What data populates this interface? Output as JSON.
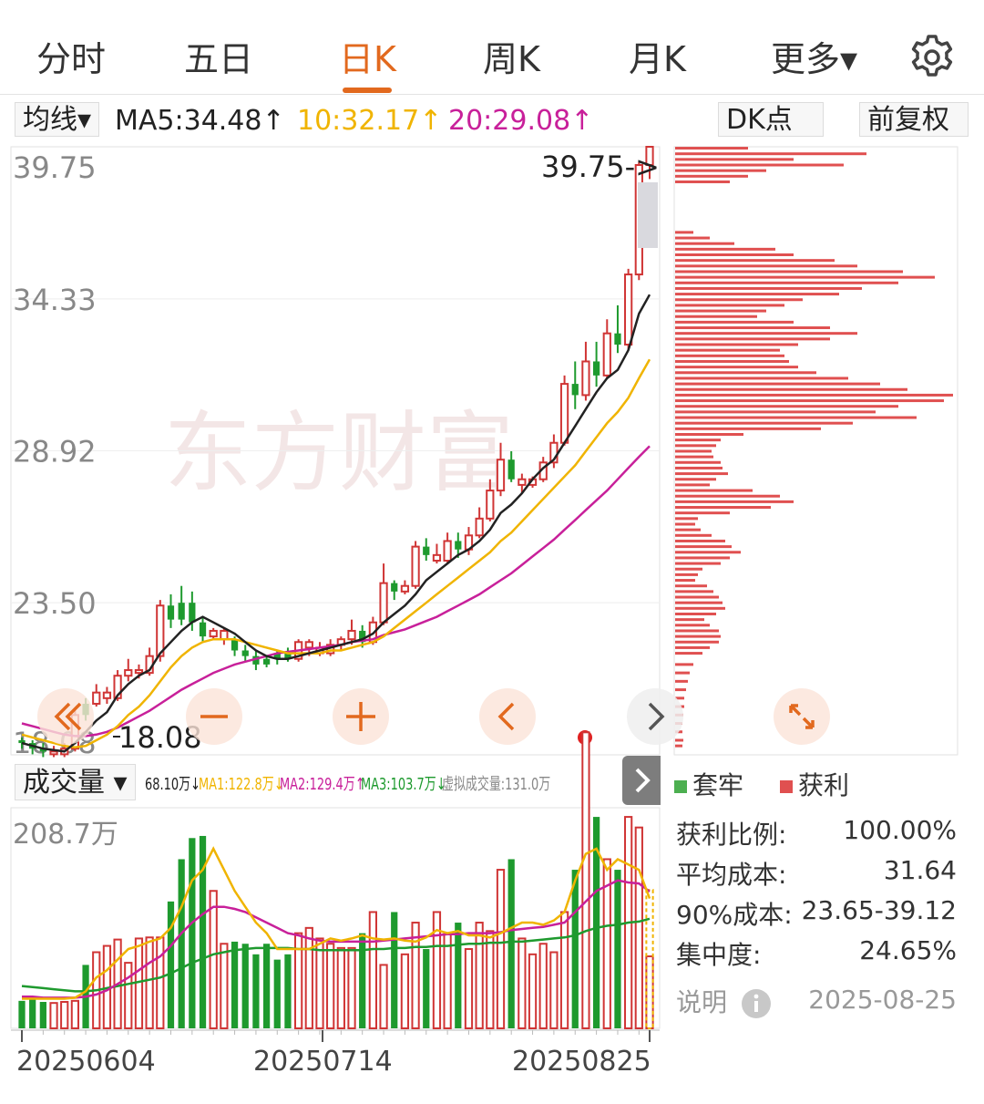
{
  "tabs": [
    {
      "label": "分时"
    },
    {
      "label": "五日"
    },
    {
      "label": "日K"
    },
    {
      "label": "周K"
    },
    {
      "label": "月K"
    },
    {
      "label": "更多▾"
    }
  ],
  "active_tab": "日K",
  "ma_bar": {
    "selector": "均线▾",
    "ma5": "MA5:34.48↑",
    "ma10": "10:32.17↑",
    "ma20": "20:29.08↑",
    "dk": "DK点",
    "fuquan": "前复权"
  },
  "volume_bar": {
    "selector": "成交量 ▾",
    "vol": "68.10万↓",
    "ma1": "MA1:122.8万↓",
    "ma2": "MA2:129.4万↑",
    "ma3": "MA3:103.7万↓",
    "virtual": "虚拟成交量:131.0万"
  },
  "chip_panel": {
    "legend_trapped": "套牢",
    "legend_profit": "获利",
    "stats": [
      {
        "k": "获利比例:",
        "v": "100.00%"
      },
      {
        "k": "平均成本:",
        "v": "31.64"
      },
      {
        "k": "90%成本:",
        "v": "23.65-39.12"
      },
      {
        "k": "集中度:",
        "v": "24.65%"
      }
    ],
    "note": "说明",
    "date": "2025-08-25"
  },
  "chart_data": {
    "type": "candlestick",
    "price_axis": {
      "ticks": [
        "39.75",
        "34.33",
        "28.92",
        "23.50",
        "18.08"
      ],
      "ylim": [
        18.08,
        39.75
      ]
    },
    "max_label": "39.75->",
    "min_label": "18.08",
    "volume_axis_label": "208.7万",
    "volume_max": 208.7,
    "x_ticks": [
      "20250604",
      "20250714",
      "20250825"
    ],
    "colors": {
      "up": "#d03535",
      "down": "#1e9a2e",
      "ma5": "#222222",
      "ma10": "#f0b400",
      "ma20": "#c8209a",
      "vma1": "#f0b400",
      "vma2": "#c8209a",
      "vma3": "#1e9a2e",
      "chip": "#e05050"
    },
    "candles": [
      [
        18.6,
        18.5,
        18.7,
        18.3,
        0
      ],
      [
        18.5,
        18.3,
        18.6,
        18.1,
        0
      ],
      [
        18.3,
        18.2,
        18.5,
        18.0,
        0
      ],
      [
        18.2,
        18.1,
        18.4,
        18.0,
        1
      ],
      [
        18.1,
        18.3,
        18.5,
        18.0,
        1
      ],
      [
        18.3,
        19.5,
        19.7,
        18.2,
        1
      ],
      [
        19.5,
        19.9,
        20.1,
        19.3,
        0
      ],
      [
        19.9,
        20.3,
        20.6,
        19.8,
        1
      ],
      [
        20.3,
        20.1,
        20.5,
        19.9,
        1
      ],
      [
        20.1,
        20.9,
        21.1,
        20.0,
        1
      ],
      [
        20.9,
        21.1,
        21.5,
        20.7,
        1
      ],
      [
        21.1,
        21.0,
        21.3,
        20.8,
        1
      ],
      [
        21.0,
        21.6,
        21.9,
        20.9,
        1
      ],
      [
        21.6,
        23.4,
        23.6,
        21.4,
        1
      ],
      [
        23.4,
        22.9,
        23.8,
        22.6,
        0
      ],
      [
        22.9,
        23.5,
        24.1,
        22.7,
        0
      ],
      [
        23.5,
        22.8,
        23.9,
        22.5,
        0
      ],
      [
        22.8,
        22.3,
        23.0,
        22.1,
        0
      ],
      [
        22.3,
        22.5,
        22.6,
        22.2,
        1
      ],
      [
        22.5,
        22.2,
        22.6,
        22.0,
        1
      ],
      [
        22.2,
        21.8,
        22.3,
        21.6,
        0
      ],
      [
        21.8,
        21.6,
        22.0,
        21.4,
        0
      ],
      [
        21.6,
        21.3,
        21.8,
        21.1,
        0
      ],
      [
        21.3,
        21.5,
        21.6,
        21.2,
        0
      ],
      [
        21.5,
        21.7,
        21.8,
        21.3,
        0
      ],
      [
        21.7,
        21.5,
        21.9,
        21.4,
        0
      ],
      [
        21.5,
        22.1,
        22.2,
        21.4,
        1
      ],
      [
        22.1,
        21.9,
        22.2,
        21.6,
        1
      ],
      [
        21.9,
        21.7,
        22.1,
        21.6,
        1
      ],
      [
        21.7,
        22.0,
        22.2,
        21.6,
        1
      ],
      [
        22.0,
        22.2,
        22.3,
        21.8,
        1
      ],
      [
        22.2,
        22.5,
        22.9,
        22.0,
        1
      ],
      [
        22.5,
        22.1,
        22.7,
        21.9,
        0
      ],
      [
        22.1,
        22.8,
        23.0,
        22.0,
        1
      ],
      [
        22.8,
        24.2,
        24.9,
        22.7,
        1
      ],
      [
        24.2,
        23.9,
        24.3,
        23.6,
        0
      ],
      [
        23.9,
        24.1,
        24.3,
        23.8,
        1
      ],
      [
        24.1,
        25.5,
        25.7,
        24.0,
        1
      ],
      [
        25.5,
        25.2,
        25.8,
        25.0,
        0
      ],
      [
        25.2,
        25.0,
        25.6,
        24.9,
        1
      ],
      [
        25.0,
        25.7,
        26.0,
        24.9,
        1
      ],
      [
        25.7,
        25.4,
        26.0,
        25.1,
        0
      ],
      [
        25.4,
        25.9,
        26.2,
        25.2,
        1
      ],
      [
        25.9,
        26.5,
        26.9,
        25.8,
        1
      ],
      [
        26.5,
        27.5,
        27.9,
        26.4,
        1
      ],
      [
        27.5,
        28.6,
        29.2,
        27.3,
        1
      ],
      [
        28.6,
        27.9,
        28.9,
        27.8,
        0
      ],
      [
        27.9,
        27.7,
        28.1,
        27.4,
        1
      ],
      [
        27.7,
        27.9,
        28.0,
        27.6,
        1
      ],
      [
        27.9,
        28.5,
        28.7,
        27.8,
        1
      ],
      [
        28.5,
        29.2,
        29.5,
        28.3,
        1
      ],
      [
        29.2,
        31.3,
        31.6,
        29.1,
        1
      ],
      [
        31.3,
        30.9,
        32.1,
        30.4,
        0
      ],
      [
        30.9,
        32.1,
        32.8,
        30.7,
        1
      ],
      [
        32.1,
        31.6,
        32.8,
        31.2,
        0
      ],
      [
        31.6,
        33.1,
        33.6,
        31.5,
        1
      ],
      [
        33.1,
        32.7,
        34.1,
        32.4,
        0
      ],
      [
        32.7,
        35.2,
        35.4,
        32.5,
        1
      ],
      [
        35.2,
        39.1,
        39.2,
        35.0,
        1
      ],
      [
        39.1,
        39.75,
        39.75,
        38.6,
        1
      ]
    ],
    "ma5": [
      18.5,
      18.4,
      18.3,
      18.25,
      18.2,
      18.5,
      18.9,
      19.3,
      19.6,
      20.2,
      20.6,
      20.9,
      21.1,
      21.7,
      22.1,
      22.5,
      22.8,
      23.0,
      22.8,
      22.6,
      22.4,
      22.1,
      21.8,
      21.6,
      21.5,
      21.5,
      21.6,
      21.7,
      21.8,
      21.9,
      22.0,
      22.1,
      22.2,
      22.4,
      22.8,
      23.1,
      23.4,
      23.8,
      24.3,
      24.6,
      24.9,
      25.2,
      25.4,
      25.7,
      26.1,
      26.7,
      27.0,
      27.4,
      27.9,
      28.3,
      28.6,
      29.2,
      29.8,
      30.4,
      31.0,
      31.5,
      31.8,
      32.5,
      33.8,
      34.48
    ],
    "ma10": [
      18.8,
      18.7,
      18.6,
      18.5,
      18.4,
      18.35,
      18.4,
      18.6,
      18.8,
      19.1,
      19.5,
      19.8,
      20.2,
      20.7,
      21.2,
      21.6,
      21.9,
      22.1,
      22.2,
      22.2,
      22.2,
      22.1,
      22.0,
      21.9,
      21.8,
      21.7,
      21.7,
      21.7,
      21.7,
      21.8,
      21.8,
      21.9,
      22.0,
      22.1,
      22.3,
      22.6,
      22.9,
      23.2,
      23.5,
      23.8,
      24.1,
      24.4,
      24.7,
      25.0,
      25.3,
      25.7,
      26.0,
      26.4,
      26.8,
      27.2,
      27.6,
      28.0,
      28.4,
      28.9,
      29.4,
      29.9,
      30.3,
      30.8,
      31.5,
      32.17
    ],
    "ma20": [
      19.2,
      19.1,
      19.0,
      18.9,
      18.8,
      18.75,
      18.75,
      18.8,
      18.9,
      19.05,
      19.25,
      19.45,
      19.65,
      19.9,
      20.15,
      20.4,
      20.6,
      20.8,
      21.0,
      21.15,
      21.3,
      21.4,
      21.5,
      21.6,
      21.7,
      21.75,
      21.8,
      21.85,
      21.9,
      21.95,
      22.0,
      22.1,
      22.15,
      22.2,
      22.35,
      22.45,
      22.55,
      22.7,
      22.85,
      23.0,
      23.2,
      23.4,
      23.6,
      23.8,
      24.05,
      24.3,
      24.55,
      24.85,
      25.15,
      25.45,
      25.75,
      26.1,
      26.45,
      26.8,
      27.15,
      27.5,
      27.9,
      28.3,
      28.7,
      29.08
    ],
    "volumes": [
      26,
      28,
      25,
      24,
      25,
      26,
      60,
      72,
      78,
      84,
      62,
      85,
      86,
      86,
      120,
      160,
      180,
      182,
      130,
      80,
      82,
      80,
      70,
      80,
      65,
      70,
      90,
      95,
      85,
      80,
      76,
      76,
      90,
      110,
      60,
      110,
      70,
      100,
      75,
      110,
      90,
      100,
      75,
      100,
      92,
      150,
      160,
      85,
      70,
      80,
      72,
      110,
      150,
      280,
      200,
      160,
      150,
      200,
      190,
      68.1
    ],
    "vma1": [
      28,
      28,
      28,
      28,
      28,
      29,
      35,
      48,
      55,
      65,
      75,
      78,
      82,
      85,
      95,
      115,
      140,
      150,
      170,
      150,
      130,
      115,
      100,
      90,
      75,
      75,
      75,
      75,
      80,
      85,
      83,
      85,
      88,
      85,
      84,
      85,
      83,
      82,
      86,
      93,
      90,
      92,
      88,
      88,
      86,
      90,
      95,
      100,
      100,
      98,
      102,
      110,
      140,
      165,
      170,
      150,
      160,
      155,
      150,
      122.8
    ],
    "vma2": [
      30,
      30,
      29,
      29,
      29,
      29,
      30,
      32,
      36,
      42,
      48,
      55,
      62,
      68,
      78,
      90,
      100,
      108,
      115,
      115,
      113,
      110,
      105,
      100,
      95,
      90,
      88,
      85,
      83,
      82,
      82,
      82,
      82,
      82,
      83,
      84,
      85,
      86,
      87,
      88,
      89,
      89,
      90,
      90,
      90,
      91,
      93,
      94,
      95,
      96,
      98,
      100,
      110,
      120,
      130,
      135,
      140,
      138,
      137,
      129.4
    ],
    "vma3": [
      40,
      39,
      38,
      37,
      36,
      35,
      35,
      36,
      38,
      40,
      42,
      44,
      46,
      48,
      52,
      57,
      62,
      66,
      70,
      72,
      74,
      75,
      76,
      76,
      76,
      76,
      75,
      75,
      74,
      74,
      74,
      74,
      74,
      75,
      75,
      76,
      76,
      77,
      77,
      78,
      78,
      79,
      80,
      80,
      81,
      81,
      82,
      82,
      83,
      84,
      85,
      86,
      88,
      92,
      95,
      97,
      98,
      100,
      101,
      103.7
    ],
    "chip_profile": [
      [
        39.7,
        80
      ],
      [
        39.5,
        210
      ],
      [
        39.3,
        130
      ],
      [
        39.1,
        185
      ],
      [
        38.9,
        100
      ],
      [
        38.7,
        80
      ],
      [
        38.5,
        60
      ],
      [
        36.7,
        20
      ],
      [
        36.5,
        38
      ],
      [
        36.3,
        65
      ],
      [
        36.1,
        110
      ],
      [
        35.9,
        130
      ],
      [
        35.7,
        175
      ],
      [
        35.5,
        200
      ],
      [
        35.3,
        250
      ],
      [
        35.1,
        285
      ],
      [
        34.9,
        245
      ],
      [
        34.7,
        205
      ],
      [
        34.5,
        180
      ],
      [
        34.3,
        140
      ],
      [
        34.1,
        120
      ],
      [
        33.9,
        100
      ],
      [
        33.7,
        90
      ],
      [
        33.5,
        130
      ],
      [
        33.3,
        170
      ],
      [
        33.1,
        200
      ],
      [
        32.9,
        170
      ],
      [
        32.7,
        135
      ],
      [
        32.5,
        115
      ],
      [
        32.3,
        120
      ],
      [
        32.1,
        125
      ],
      [
        31.9,
        135
      ],
      [
        31.7,
        155
      ],
      [
        31.5,
        190
      ],
      [
        31.3,
        225
      ],
      [
        31.1,
        255
      ],
      [
        30.9,
        305
      ],
      [
        30.7,
        295
      ],
      [
        30.5,
        245
      ],
      [
        30.3,
        220
      ],
      [
        30.1,
        265
      ],
      [
        29.9,
        195
      ],
      [
        29.7,
        160
      ],
      [
        29.5,
        75
      ],
      [
        29.3,
        50
      ],
      [
        29.1,
        45
      ],
      [
        28.9,
        40
      ],
      [
        28.7,
        42
      ],
      [
        28.5,
        50
      ],
      [
        28.3,
        52
      ],
      [
        28.1,
        58
      ],
      [
        27.9,
        45
      ],
      [
        27.7,
        38
      ],
      [
        27.5,
        85
      ],
      [
        27.3,
        115
      ],
      [
        27.1,
        130
      ],
      [
        26.9,
        105
      ],
      [
        26.7,
        60
      ],
      [
        26.5,
        25
      ],
      [
        26.3,
        22
      ],
      [
        26.1,
        28
      ],
      [
        25.9,
        40
      ],
      [
        25.7,
        55
      ],
      [
        25.5,
        62
      ],
      [
        25.3,
        72
      ],
      [
        25.1,
        60
      ],
      [
        24.9,
        50
      ],
      [
        24.7,
        30
      ],
      [
        24.5,
        25
      ],
      [
        24.3,
        22
      ],
      [
        24.1,
        35
      ],
      [
        23.9,
        42
      ],
      [
        23.7,
        48
      ],
      [
        23.5,
        52
      ],
      [
        23.3,
        55
      ],
      [
        23.1,
        45
      ],
      [
        22.9,
        32
      ],
      [
        22.7,
        38
      ],
      [
        22.5,
        48
      ],
      [
        22.3,
        50
      ],
      [
        22.1,
        48
      ],
      [
        21.9,
        38
      ],
      [
        21.7,
        30
      ],
      [
        21.3,
        20
      ],
      [
        21.0,
        16
      ],
      [
        20.7,
        14
      ],
      [
        20.4,
        12
      ],
      [
        20.1,
        10
      ],
      [
        19.8,
        10
      ],
      [
        19.5,
        9
      ],
      [
        19.2,
        8
      ],
      [
        18.9,
        8
      ],
      [
        18.6,
        9
      ],
      [
        18.4,
        8
      ]
    ]
  }
}
